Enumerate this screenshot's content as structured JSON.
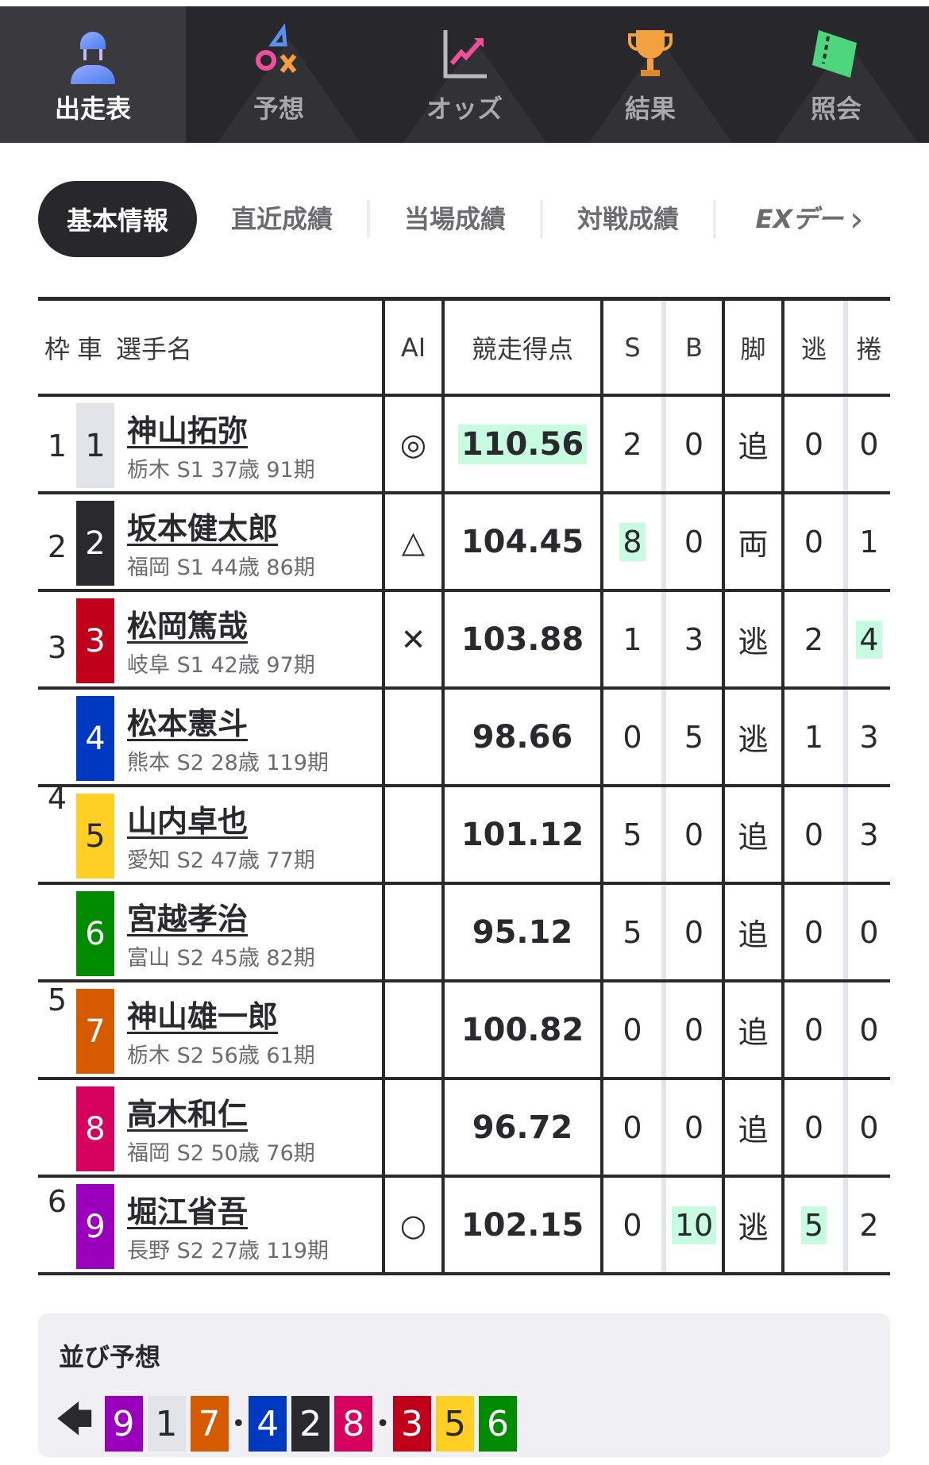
{
  "nav": [
    {
      "label": "出走表",
      "icon": "rider-icon",
      "active": true
    },
    {
      "label": "予想",
      "icon": "prediction-marks-icon"
    },
    {
      "label": "オッズ",
      "icon": "odds-chart-icon"
    },
    {
      "label": "結果",
      "icon": "trophy-icon"
    },
    {
      "label": "照会",
      "icon": "ticket-icon"
    }
  ],
  "subtabs": {
    "active": "基本情報",
    "items": [
      "直近成績",
      "当場成績",
      "対戦成績"
    ],
    "ex": "EXデー",
    "more_icon": "chevron-right-icon"
  },
  "table": {
    "headers": {
      "waku": "枠",
      "car": "車",
      "name": "選手名",
      "ai": "AI",
      "score": "競走得点",
      "s": "S",
      "b": "B",
      "style": "脚",
      "nige": "逃",
      "makuri": "捲"
    },
    "waku_groups": [
      {
        "waku": "1",
        "rows": 1
      },
      {
        "waku": "2",
        "rows": 1
      },
      {
        "waku": "3",
        "rows": 1
      },
      {
        "waku": "4",
        "rows": 2
      },
      {
        "waku": "5",
        "rows": 2
      },
      {
        "waku": "6",
        "rows": 2
      }
    ],
    "rows": [
      {
        "car": "1",
        "name": "神山拓弥",
        "info": "栃木 S1 37歳 91期",
        "ai": "◎",
        "score": "110.56",
        "s": "2",
        "b": "0",
        "style": "追",
        "nige": "0",
        "makuri": "0",
        "hl": [
          "score"
        ]
      },
      {
        "car": "2",
        "name": "坂本健太郎",
        "info": "福岡 S1 44歳 86期",
        "ai": "△",
        "score": "104.45",
        "s": "8",
        "b": "0",
        "style": "両",
        "nige": "0",
        "makuri": "1",
        "hl": [
          "s"
        ]
      },
      {
        "car": "3",
        "name": "松岡篤哉",
        "info": "岐阜 S1 42歳 97期",
        "ai": "✕",
        "score": "103.88",
        "s": "1",
        "b": "3",
        "style": "逃",
        "nige": "2",
        "makuri": "4",
        "hl": [
          "makuri"
        ]
      },
      {
        "car": "4",
        "name": "松本憲斗",
        "info": "熊本 S2 28歳 119期",
        "ai": "",
        "score": "98.66",
        "s": "0",
        "b": "5",
        "style": "逃",
        "nige": "1",
        "makuri": "3",
        "hl": []
      },
      {
        "car": "5",
        "name": "山内卓也",
        "info": "愛知 S2 47歳 77期",
        "ai": "",
        "score": "101.12",
        "s": "5",
        "b": "0",
        "style": "追",
        "nige": "0",
        "makuri": "3",
        "hl": []
      },
      {
        "car": "6",
        "name": "宮越孝治",
        "info": "富山 S2 45歳 82期",
        "ai": "",
        "score": "95.12",
        "s": "5",
        "b": "0",
        "style": "追",
        "nige": "0",
        "makuri": "0",
        "hl": []
      },
      {
        "car": "7",
        "name": "神山雄一郎",
        "info": "栃木 S2 56歳 61期",
        "ai": "",
        "score": "100.82",
        "s": "0",
        "b": "0",
        "style": "追",
        "nige": "0",
        "makuri": "0",
        "hl": []
      },
      {
        "car": "8",
        "name": "高木和仁",
        "info": "福岡 S2 50歳 76期",
        "ai": "",
        "score": "96.72",
        "s": "0",
        "b": "0",
        "style": "追",
        "nige": "0",
        "makuri": "0",
        "hl": []
      },
      {
        "car": "9",
        "name": "堀江省吾",
        "info": "長野 S2 27歳 119期",
        "ai": "○",
        "score": "102.15",
        "s": "0",
        "b": "10",
        "style": "逃",
        "nige": "5",
        "makuri": "2",
        "hl": [
          "b",
          "nige"
        ]
      }
    ]
  },
  "car_colors": {
    "1": [
      "#e3e4e9",
      "#2a2a2e"
    ],
    "2": [
      "#2a2a2e",
      "#ffffff"
    ],
    "3": [
      "#c0001a",
      "#ffffff"
    ],
    "4": [
      "#0039c1",
      "#ffffff"
    ],
    "5": [
      "#ffcf26",
      "#2a2a2e"
    ],
    "6": [
      "#008b00",
      "#ffffff"
    ],
    "7": [
      "#d65b00",
      "#ffffff"
    ],
    "8": [
      "#d6005f",
      "#ffffff"
    ],
    "9": [
      "#9a00bb",
      "#ffffff"
    ]
  },
  "highlight_color": "#c8fce0",
  "lineup": {
    "title": "並び予想",
    "direction_icon": "arrow-left-icon",
    "groups": [
      [
        "9",
        "1",
        "7"
      ],
      [
        "4",
        "2",
        "8"
      ],
      [
        "3",
        "5",
        "6"
      ]
    ],
    "separator": "•"
  }
}
